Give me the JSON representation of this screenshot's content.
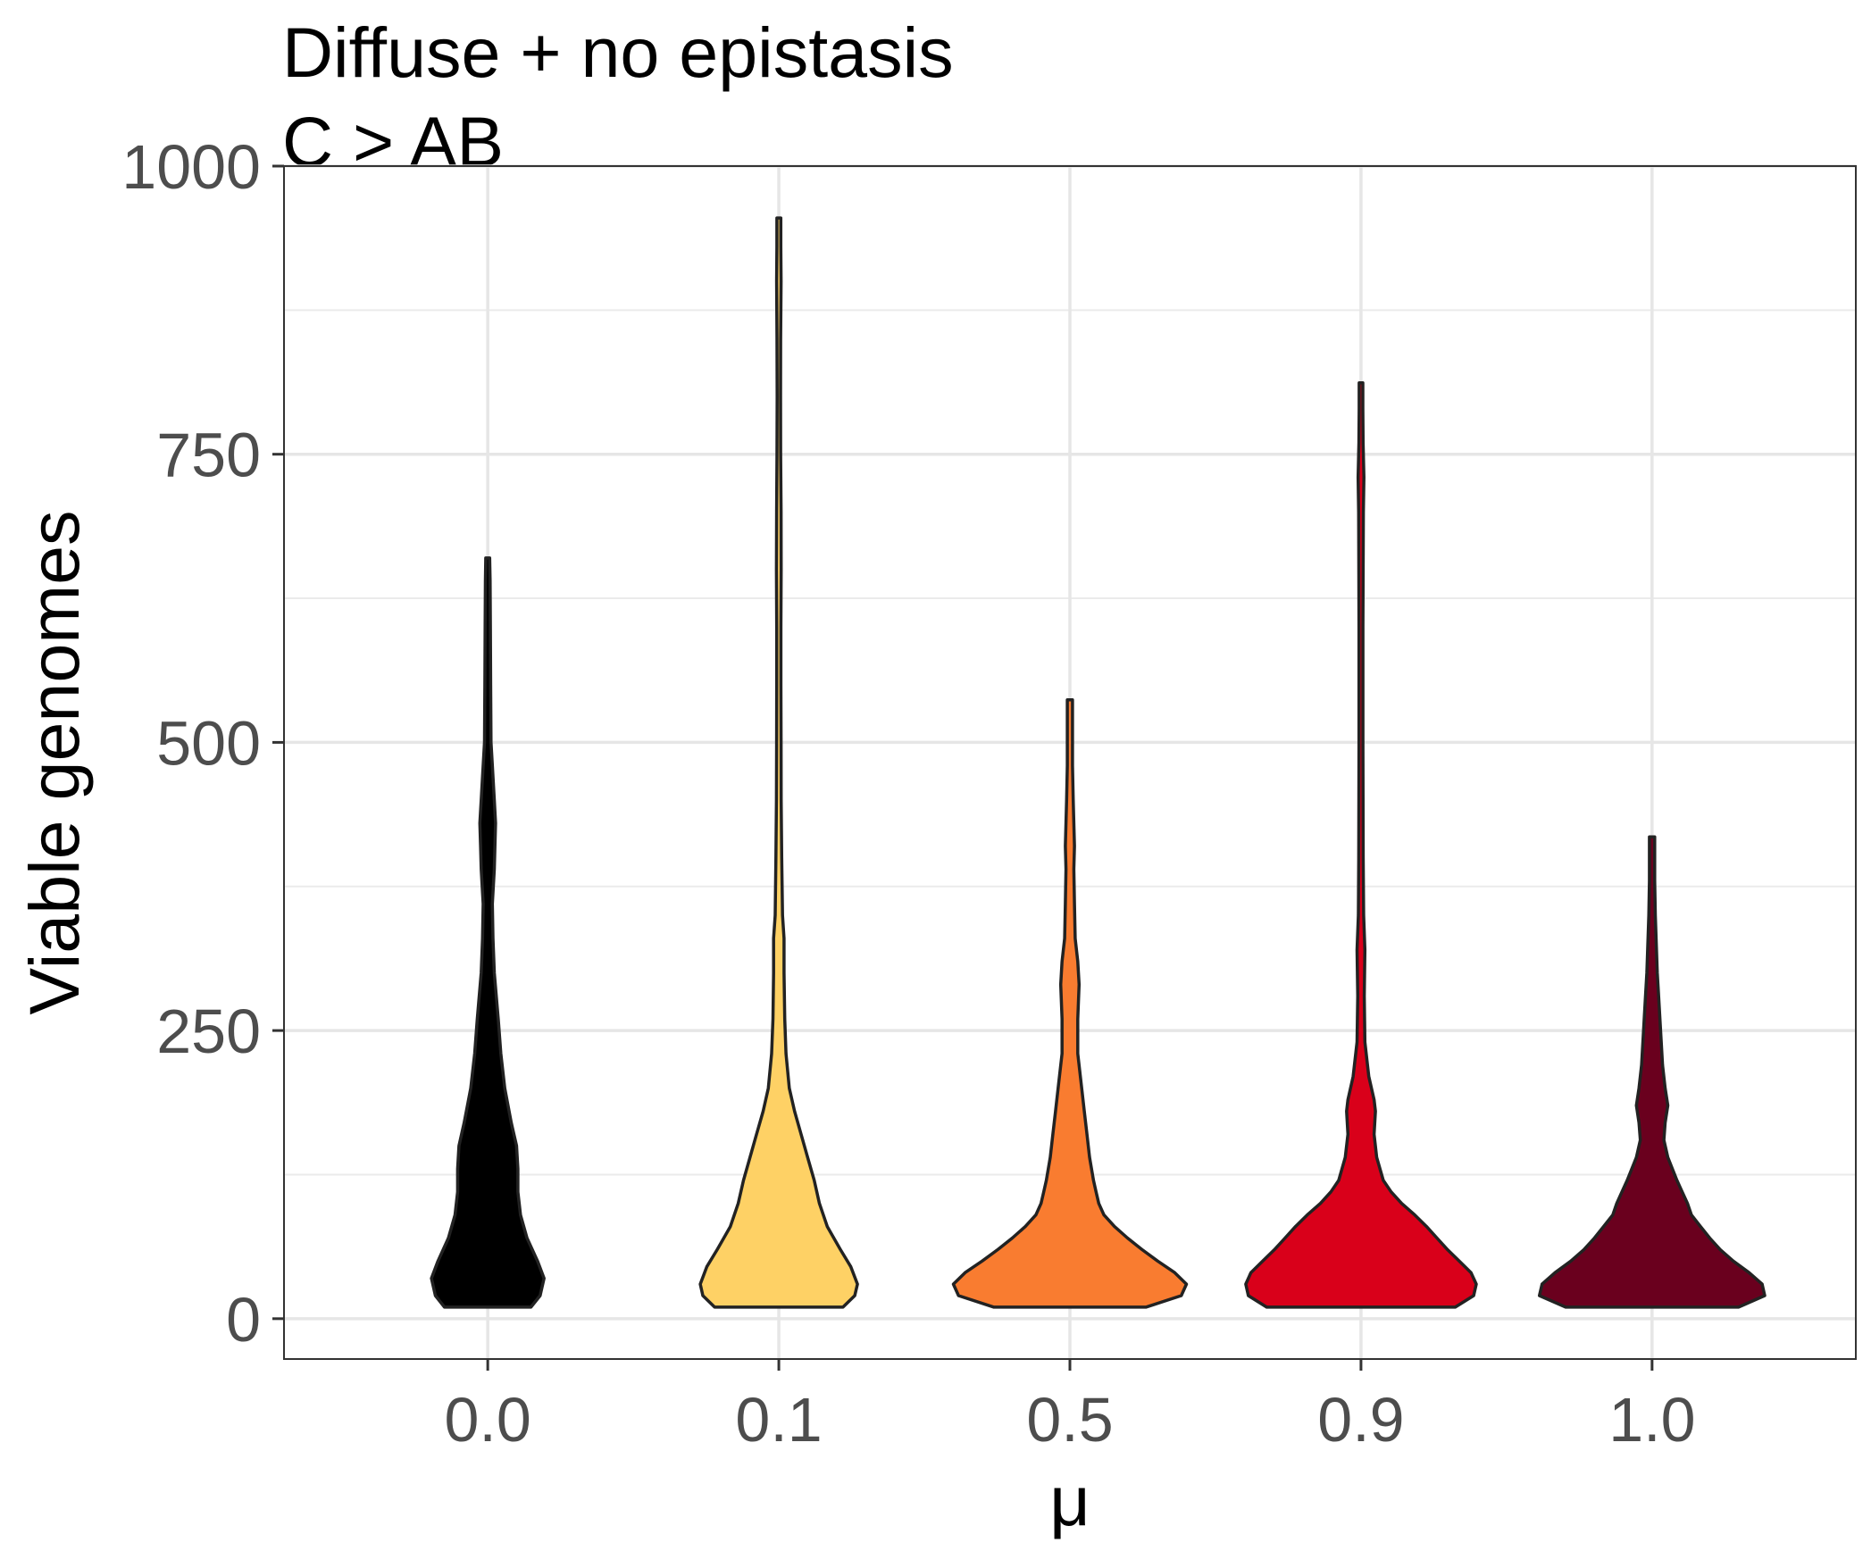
{
  "chart_data": {
    "type": "violin",
    "title": "Diffuse + no epistasis",
    "subtitle": "C > AB",
    "xlabel": "μ",
    "ylabel": "Viable genomes",
    "ylim": [
      -35,
      1000
    ],
    "yticks": [
      0,
      250,
      500,
      750,
      1000
    ],
    "categories": [
      "0.0",
      "0.1",
      "0.5",
      "0.9",
      "1.0"
    ],
    "grid": true,
    "legend": "none",
    "colors": [
      "#000000",
      "#FED165",
      "#F97C30",
      "#D9001A",
      "#6A001E"
    ],
    "outline_color": "#222222",
    "violins": [
      {
        "category": "0.0",
        "min": 10,
        "max": 660,
        "profile": [
          [
            10,
            0.33
          ],
          [
            20,
            0.4
          ],
          [
            35,
            0.43
          ],
          [
            50,
            0.38
          ],
          [
            70,
            0.3
          ],
          [
            90,
            0.25
          ],
          [
            110,
            0.23
          ],
          [
            130,
            0.23
          ],
          [
            150,
            0.22
          ],
          [
            170,
            0.18
          ],
          [
            200,
            0.13
          ],
          [
            230,
            0.1
          ],
          [
            260,
            0.08
          ],
          [
            300,
            0.05
          ],
          [
            330,
            0.04
          ],
          [
            360,
            0.035
          ],
          [
            390,
            0.05
          ],
          [
            410,
            0.055
          ],
          [
            430,
            0.06
          ],
          [
            450,
            0.05
          ],
          [
            480,
            0.035
          ],
          [
            500,
            0.025
          ],
          [
            550,
            0.022
          ],
          [
            600,
            0.02
          ],
          [
            640,
            0.018
          ],
          [
            660,
            0.015
          ]
        ]
      },
      {
        "category": "0.1",
        "min": 10,
        "max": 955,
        "profile": [
          [
            10,
            0.49
          ],
          [
            20,
            0.58
          ],
          [
            30,
            0.6
          ],
          [
            45,
            0.55
          ],
          [
            60,
            0.47
          ],
          [
            80,
            0.37
          ],
          [
            100,
            0.31
          ],
          [
            120,
            0.27
          ],
          [
            140,
            0.22
          ],
          [
            160,
            0.17
          ],
          [
            180,
            0.12
          ],
          [
            200,
            0.08
          ],
          [
            230,
            0.055
          ],
          [
            260,
            0.045
          ],
          [
            300,
            0.04
          ],
          [
            330,
            0.04
          ],
          [
            350,
            0.028
          ],
          [
            400,
            0.022
          ],
          [
            450,
            0.018
          ],
          [
            500,
            0.017
          ],
          [
            550,
            0.016
          ],
          [
            600,
            0.016
          ],
          [
            650,
            0.018
          ],
          [
            700,
            0.017
          ],
          [
            750,
            0.014
          ],
          [
            800,
            0.013
          ],
          [
            850,
            0.014
          ],
          [
            900,
            0.017
          ],
          [
            930,
            0.015
          ],
          [
            955,
            0.015
          ]
        ]
      },
      {
        "category": "0.5",
        "min": 10,
        "max": 537,
        "profile": [
          [
            10,
            0.58
          ],
          [
            20,
            0.85
          ],
          [
            30,
            0.89
          ],
          [
            40,
            0.8
          ],
          [
            50,
            0.67
          ],
          [
            60,
            0.55
          ],
          [
            70,
            0.44
          ],
          [
            80,
            0.34
          ],
          [
            90,
            0.26
          ],
          [
            100,
            0.22
          ],
          [
            110,
            0.2
          ],
          [
            120,
            0.18
          ],
          [
            140,
            0.15
          ],
          [
            160,
            0.13
          ],
          [
            180,
            0.11
          ],
          [
            200,
            0.09
          ],
          [
            230,
            0.06
          ],
          [
            260,
            0.06
          ],
          [
            290,
            0.07
          ],
          [
            310,
            0.06
          ],
          [
            330,
            0.04
          ],
          [
            360,
            0.035
          ],
          [
            390,
            0.03
          ],
          [
            410,
            0.035
          ],
          [
            430,
            0.03
          ],
          [
            450,
            0.025
          ],
          [
            480,
            0.02
          ],
          [
            510,
            0.02
          ],
          [
            537,
            0.02
          ]
        ]
      },
      {
        "category": "0.9",
        "min": 10,
        "max": 812,
        "profile": [
          [
            10,
            0.72
          ],
          [
            20,
            0.86
          ],
          [
            30,
            0.88
          ],
          [
            40,
            0.84
          ],
          [
            50,
            0.75
          ],
          [
            60,
            0.66
          ],
          [
            70,
            0.58
          ],
          [
            80,
            0.5
          ],
          [
            90,
            0.41
          ],
          [
            100,
            0.31
          ],
          [
            110,
            0.23
          ],
          [
            120,
            0.17
          ],
          [
            140,
            0.12
          ],
          [
            160,
            0.1
          ],
          [
            180,
            0.11
          ],
          [
            190,
            0.1
          ],
          [
            210,
            0.06
          ],
          [
            240,
            0.03
          ],
          [
            280,
            0.025
          ],
          [
            320,
            0.03
          ],
          [
            350,
            0.02
          ],
          [
            400,
            0.017
          ],
          [
            500,
            0.015
          ],
          [
            600,
            0.015
          ],
          [
            700,
            0.018
          ],
          [
            730,
            0.022
          ],
          [
            760,
            0.016
          ],
          [
            790,
            0.014
          ],
          [
            812,
            0.014
          ]
        ]
      },
      {
        "category": "1.0",
        "min": 10,
        "max": 418,
        "profile": [
          [
            10,
            0.66
          ],
          [
            20,
            0.86
          ],
          [
            30,
            0.84
          ],
          [
            40,
            0.74
          ],
          [
            50,
            0.62
          ],
          [
            60,
            0.52
          ],
          [
            70,
            0.44
          ],
          [
            80,
            0.37
          ],
          [
            90,
            0.3
          ],
          [
            100,
            0.27
          ],
          [
            110,
            0.23
          ],
          [
            120,
            0.19
          ],
          [
            140,
            0.12
          ],
          [
            155,
            0.09
          ],
          [
            170,
            0.1
          ],
          [
            185,
            0.12
          ],
          [
            200,
            0.1
          ],
          [
            220,
            0.08
          ],
          [
            250,
            0.065
          ],
          [
            280,
            0.05
          ],
          [
            300,
            0.04
          ],
          [
            350,
            0.025
          ],
          [
            380,
            0.02
          ],
          [
            418,
            0.02
          ]
        ]
      }
    ]
  }
}
